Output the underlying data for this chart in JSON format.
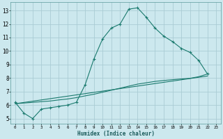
{
  "xlabel": "Humidex (Indice chaleur)",
  "bg_color": "#cce8ee",
  "grid_color": "#aaccd4",
  "line_color": "#1a7a6e",
  "xlim": [
    -0.5,
    23.5
  ],
  "ylim": [
    4.6,
    13.6
  ],
  "xticks": [
    0,
    1,
    2,
    3,
    4,
    5,
    6,
    7,
    8,
    9,
    10,
    11,
    12,
    13,
    14,
    15,
    16,
    17,
    18,
    19,
    20,
    21,
    22,
    23
  ],
  "yticks": [
    5,
    6,
    7,
    8,
    9,
    10,
    11,
    12,
    13
  ],
  "curve1_x": [
    0,
    1,
    2,
    3,
    4,
    5,
    6,
    7,
    8,
    9,
    10,
    11,
    12,
    13,
    14,
    15,
    16,
    17,
    18,
    19,
    20,
    21,
    22
  ],
  "curve1_y": [
    6.2,
    5.4,
    5.0,
    5.7,
    5.8,
    5.9,
    6.0,
    6.2,
    7.5,
    9.4,
    10.9,
    11.7,
    12.0,
    13.1,
    13.2,
    12.5,
    11.7,
    11.1,
    10.7,
    10.2,
    9.9,
    9.3,
    8.3
  ],
  "curve2_x": [
    0,
    1,
    2,
    3,
    4,
    5,
    6,
    7,
    8,
    9,
    10,
    11,
    12,
    13,
    14,
    15,
    16,
    17,
    18,
    19,
    20,
    21,
    22
  ],
  "curve2_y": [
    6.1,
    6.15,
    6.2,
    6.25,
    6.3,
    6.38,
    6.45,
    6.55,
    6.68,
    6.8,
    6.95,
    7.1,
    7.25,
    7.4,
    7.55,
    7.65,
    7.75,
    7.82,
    7.88,
    7.93,
    7.98,
    8.1,
    8.3
  ],
  "curve3_x": [
    0,
    22
  ],
  "curve3_y": [
    6.1,
    8.15
  ]
}
